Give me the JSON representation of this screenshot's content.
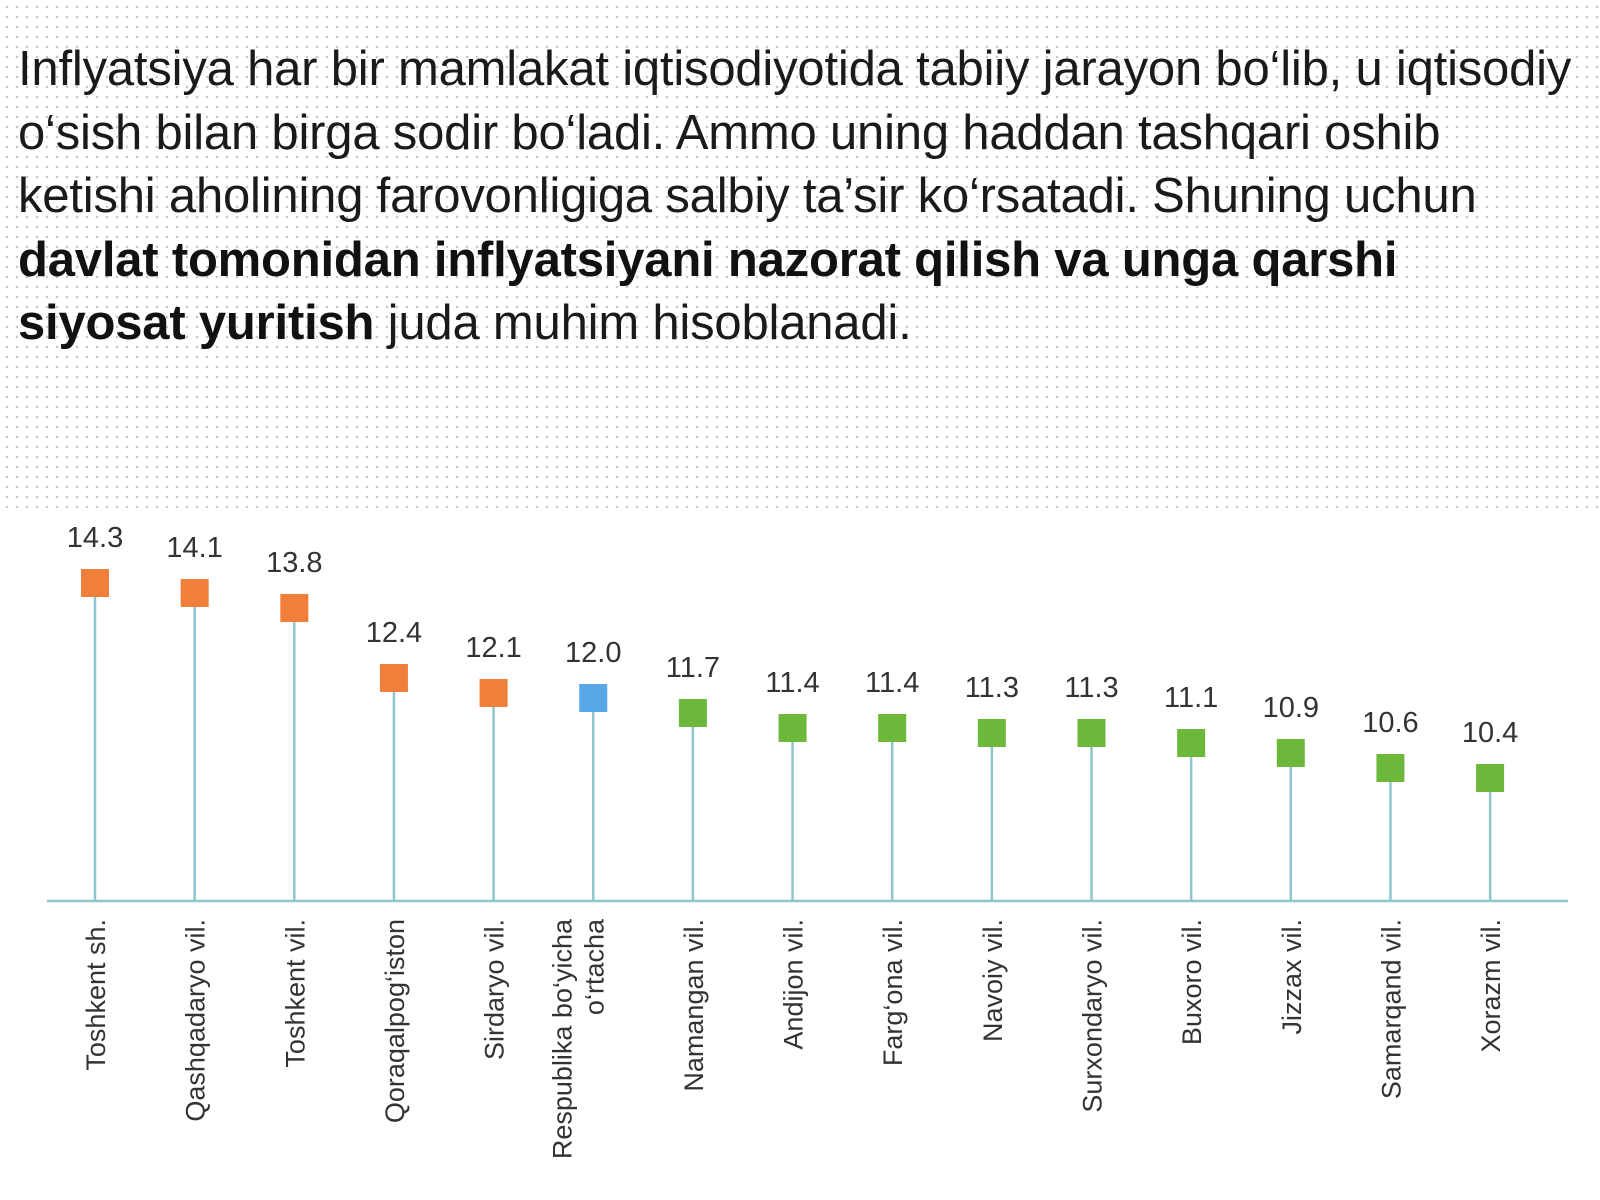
{
  "intro": {
    "part1": "Inflyatsiya har bir mamlakat iqtisodiyotida tabiiy jarayon bo‘lib, u iqtisodiy o‘sish bilan birga sodir bo‘ladi. Ammo uning haddan tashqari oshib ketishi aholining farovonligiga salbiy ta’sir ko‘rsatadi. Shuning uchun ",
    "bold": "davlat tomonidan inflyatsiyani nazorat qilish va unga qarshi siyosat yuritish",
    "part2": " juda muhim hisoblanadi."
  },
  "chart_data": {
    "type": "lollipop",
    "title": "",
    "xlabel": "",
    "ylabel": "",
    "ylim": [
      0,
      14.3
    ],
    "grid": false,
    "legend": "none",
    "categories": [
      "Toshkent sh.",
      "Qashqadaryo vil.",
      "Toshkent vil.",
      "Qoraqalpog‘iston",
      "Sirdaryo vil.",
      "Respublika bo‘yicha o‘rtacha",
      "Namangan vil.",
      "Andijon vil.",
      "Farg‘ona vil.",
      "Navoiy vil.",
      "Surxondaryo vil.",
      "Buxoro vil.",
      "Jizzax vil.",
      "Samarqand vil.",
      "Xorazm vil."
    ],
    "category_lines": [
      [
        "Toshkent sh."
      ],
      [
        "Qashqadaryo vil."
      ],
      [
        "Toshkent vil."
      ],
      [
        "Qoraqalpog‘iston"
      ],
      [
        "Sirdaryo vil."
      ],
      [
        "Respublika bo‘yicha",
        "o‘rtacha"
      ],
      [
        "Namangan vil."
      ],
      [
        "Andijon vil."
      ],
      [
        "Farg‘ona vil."
      ],
      [
        "Navoiy vil."
      ],
      [
        "Surxondaryo vil."
      ],
      [
        "Buxoro vil."
      ],
      [
        "Jizzax vil."
      ],
      [
        "Samarqand vil."
      ],
      [
        "Xorazm vil."
      ]
    ],
    "values": [
      14.3,
      14.1,
      13.8,
      12.4,
      12.1,
      12.0,
      11.7,
      11.4,
      11.4,
      11.3,
      11.3,
      11.1,
      10.9,
      10.6,
      10.4
    ],
    "value_labels": [
      "14.3",
      "14.1",
      "13.8",
      "12.4",
      "12.1",
      "12.0",
      "11.7",
      "11.4",
      "11.4",
      "11.3",
      "11.3",
      "11.1",
      "10.9",
      "10.6",
      "10.4"
    ],
    "marker_colors": [
      "#f07f3c",
      "#f07f3c",
      "#f07f3c",
      "#f07f3c",
      "#f07f3c",
      "#5aa7e8",
      "#6cb83a",
      "#6cb83a",
      "#6cb83a",
      "#6cb83a",
      "#6cb83a",
      "#6cb83a",
      "#6cb83a",
      "#6cb83a",
      "#6cb83a"
    ],
    "stem_color": "#8fc6cc",
    "axis_color": "#8fc6cc"
  }
}
